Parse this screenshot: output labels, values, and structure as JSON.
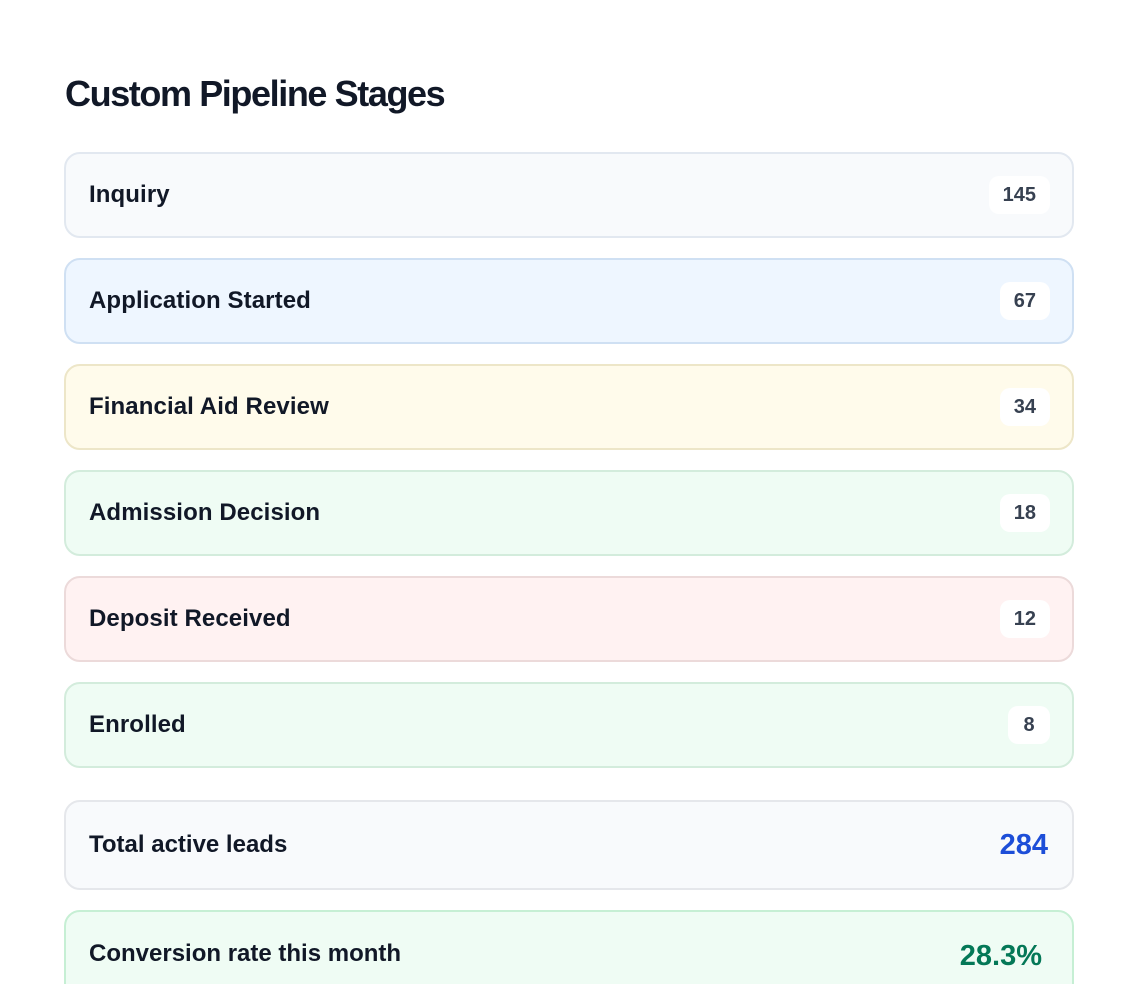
{
  "page": {
    "title": "Custom Pipeline Stages"
  },
  "stages": [
    {
      "label": "Inquiry",
      "count": "145",
      "bg": "#f8fafc",
      "border": "#e2e8f0"
    },
    {
      "label": "Application Started",
      "count": "67",
      "bg": "#eef6ff",
      "border": "#cfe0f3"
    },
    {
      "label": "Financial Aid Review",
      "count": "34",
      "bg": "#fffbeb",
      "border": "#ede6c8"
    },
    {
      "label": "Admission Decision",
      "count": "18",
      "bg": "#effcf4",
      "border": "#d3ecdc"
    },
    {
      "label": "Deposit Received",
      "count": "12",
      "bg": "#fff2f2",
      "border": "#ecdada"
    },
    {
      "label": "Enrolled",
      "count": "8",
      "bg": "#effcf4",
      "border": "#d3ecdc"
    }
  ],
  "summary": {
    "total_label": "Total active leads",
    "total_value": "284",
    "total_color": "#1d4ed8",
    "conversion_label": "Conversion rate this month",
    "conversion_value": "28.3%",
    "conversion_color": "#047857"
  }
}
